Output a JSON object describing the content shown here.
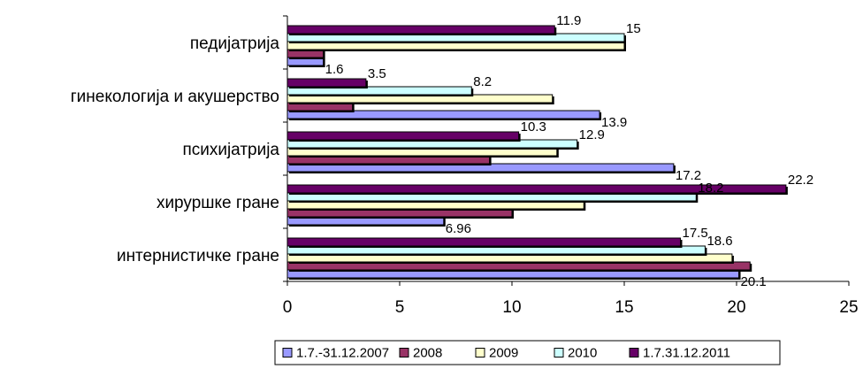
{
  "chart_data": {
    "type": "bar",
    "orientation": "horizontal",
    "categories": [
      "интернистичке гране",
      "хируршке гране",
      "психијатрија",
      "гинекологија и акушерство",
      "педијатрија"
    ],
    "series": [
      {
        "name": "1.7.-31.12.2007",
        "color": "#9999FF",
        "values": [
          20.1,
          6.96,
          17.2,
          13.9,
          1.6
        ]
      },
      {
        "name": "2008",
        "color": "#993366",
        "values": [
          20.6,
          10.0,
          9.0,
          2.9,
          1.6
        ]
      },
      {
        "name": "2009",
        "color": "#FFFFCC",
        "values": [
          19.8,
          13.2,
          12.0,
          11.8,
          15.0
        ]
      },
      {
        "name": "2010",
        "color": "#CCFFFF",
        "values": [
          18.6,
          18.2,
          12.9,
          8.2,
          15.0
        ]
      },
      {
        "name": "1.7.31.12.2011",
        "color": "#660066",
        "values": [
          17.5,
          22.2,
          10.3,
          3.5,
          11.9
        ]
      }
    ],
    "data_labels": [
      {
        "series": 0,
        "category": 0,
        "text": "20.1"
      },
      {
        "series": 4,
        "category": 0,
        "text": "17.5"
      },
      {
        "series": 3,
        "category": 0,
        "text": "18.6"
      },
      {
        "series": 0,
        "category": 1,
        "text": "6.96"
      },
      {
        "series": 3,
        "category": 1,
        "text": "18.2"
      },
      {
        "series": 4,
        "category": 1,
        "text": "22.2"
      },
      {
        "series": 0,
        "category": 2,
        "text": "17.2"
      },
      {
        "series": 3,
        "category": 2,
        "text": "12.9"
      },
      {
        "series": 4,
        "category": 2,
        "text": "10.3"
      },
      {
        "series": 0,
        "category": 3,
        "text": "13.9"
      },
      {
        "series": 3,
        "category": 3,
        "text": "8.2"
      },
      {
        "series": 4,
        "category": 3,
        "text": "3.5"
      },
      {
        "series": 0,
        "category": 4,
        "text": "1.6"
      },
      {
        "series": 4,
        "category": 4,
        "text": "11.9"
      },
      {
        "series": 3,
        "category": 4,
        "text": "15"
      }
    ],
    "xlim": [
      0,
      25
    ],
    "xticks": [
      0,
      5,
      10,
      15,
      20,
      25
    ],
    "grid": false,
    "legend_position": "bottom",
    "title": "",
    "xlabel": "",
    "ylabel": ""
  }
}
